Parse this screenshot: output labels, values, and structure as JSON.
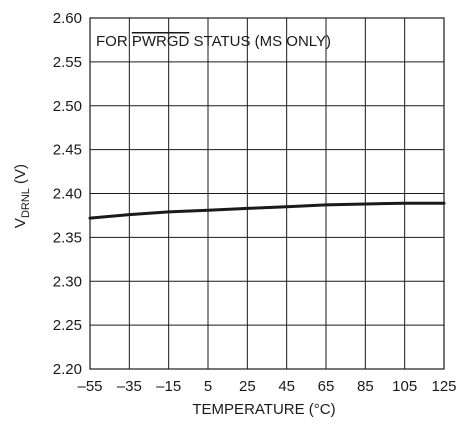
{
  "chart_data": {
    "type": "line",
    "title": "",
    "annotation": {
      "prefix": "FOR ",
      "overlined": "PWRGD",
      "suffix": " STATUS (MS ONLY)"
    },
    "xlabel": "TEMPERATURE (°C)",
    "ylabel": {
      "main": "V",
      "subscript": "DRNL",
      "unit": " (V)"
    },
    "xlim": [
      -55,
      125
    ],
    "ylim": [
      2.2,
      2.6
    ],
    "x_ticks": [
      -55,
      -35,
      -15,
      5,
      25,
      45,
      65,
      85,
      105,
      125
    ],
    "x_tick_labels": [
      "–55",
      "–35",
      "–15",
      "5",
      "25",
      "45",
      "65",
      "85",
      "105",
      "125"
    ],
    "y_ticks": [
      2.2,
      2.25,
      2.3,
      2.35,
      2.4,
      2.45,
      2.5,
      2.55,
      2.6
    ],
    "y_tick_labels": [
      "2.20",
      "2.25",
      "2.30",
      "2.35",
      "2.40",
      "2.45",
      "2.50",
      "2.55",
      "2.60"
    ],
    "grid": true,
    "series": [
      {
        "x": [
          -55,
          -35,
          -15,
          5,
          25,
          45,
          65,
          85,
          105,
          125
        ],
        "y": [
          2.372,
          2.376,
          2.379,
          2.381,
          2.383,
          2.385,
          2.387,
          2.388,
          2.389,
          2.389
        ]
      }
    ]
  }
}
